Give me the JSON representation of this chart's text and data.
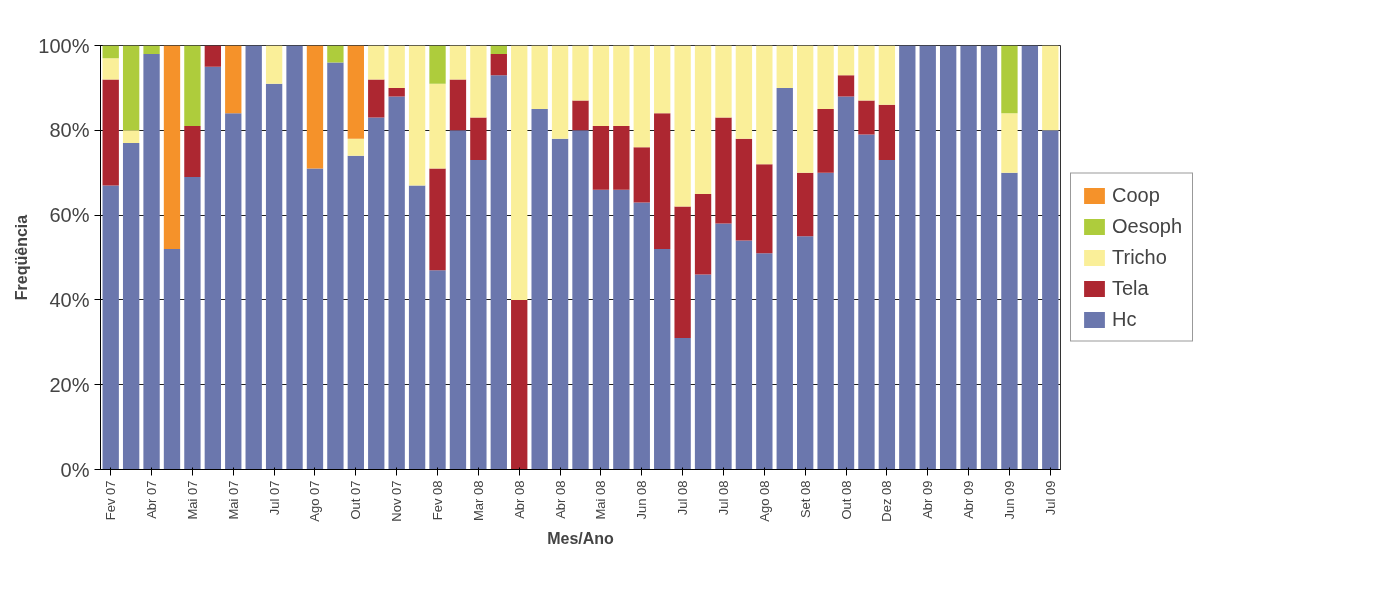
{
  "chart_data": {
    "type": "bar",
    "stacked": true,
    "xlabel": "Mes/Ano",
    "ylabel": "Freqüência",
    "categories": [
      "Fev 07",
      null,
      "Abr 07",
      null,
      "Mai 07",
      null,
      "Mai 07",
      null,
      "Jul 07",
      null,
      "Ago 07",
      null,
      "Out 07",
      null,
      "Nov 07",
      null,
      "Fev 08",
      null,
      "Mar 08",
      null,
      "Abr 08",
      null,
      "Abr 08",
      null,
      "Mai 08",
      null,
      "Jun 08",
      null,
      "Jul 08",
      null,
      "Jul 08",
      null,
      "Ago 08",
      null,
      "Set 08",
      null,
      "Out 08",
      null,
      "Dez 08",
      null,
      "Abr 09",
      null,
      "Abr 09",
      null,
      "Jun 09",
      null,
      "Jul 09"
    ],
    "series": [
      {
        "name": "Hc",
        "color": "#6b77ad",
        "values": [
          67,
          77,
          98,
          52,
          69,
          95,
          84,
          100,
          91,
          100,
          71,
          96,
          74,
          83,
          88,
          67,
          47,
          80,
          73,
          93,
          0,
          85,
          78,
          80,
          66,
          66,
          63,
          52,
          31,
          46,
          58,
          54,
          51,
          90,
          55,
          70,
          88,
          79,
          73,
          100,
          100,
          100,
          100,
          100,
          70,
          100,
          80
        ]
      },
      {
        "name": "Tela",
        "color": "#ad2731",
        "values": [
          25,
          0,
          0,
          0,
          12,
          5,
          0,
          0,
          0,
          0,
          0,
          0,
          0,
          9,
          2,
          0,
          24,
          12,
          10,
          5,
          40,
          0,
          0,
          7,
          15,
          15,
          13,
          32,
          31,
          19,
          25,
          24,
          21,
          0,
          15,
          15,
          5,
          8,
          13,
          0,
          0,
          0,
          0,
          0,
          0,
          0,
          0
        ]
      },
      {
        "name": "Tricho",
        "color": "#faef99",
        "values": [
          5,
          3,
          0,
          0,
          0,
          0,
          0,
          0,
          9,
          0,
          0,
          0,
          4,
          8,
          10,
          33,
          20,
          8,
          17,
          0,
          60,
          15,
          22,
          13,
          19,
          19,
          24,
          16,
          38,
          35,
          17,
          22,
          28,
          10,
          30,
          15,
          7,
          13,
          14,
          0,
          0,
          0,
          0,
          0,
          14,
          0,
          20
        ]
      },
      {
        "name": "Oesoph",
        "color": "#aecc3c",
        "values": [
          3,
          20,
          2,
          0,
          19,
          0,
          0,
          0,
          0,
          0,
          0,
          4,
          0,
          0,
          0,
          0,
          9,
          0,
          0,
          2,
          0,
          0,
          0,
          0,
          0,
          0,
          0,
          0,
          0,
          0,
          0,
          0,
          0,
          0,
          0,
          0,
          0,
          0,
          0,
          0,
          0,
          0,
          0,
          0,
          16,
          0,
          0
        ]
      },
      {
        "name": "Coop",
        "color": "#f5922a",
        "values": [
          0,
          0,
          0,
          48,
          0,
          0,
          16,
          0,
          0,
          0,
          29,
          0,
          22,
          0,
          0,
          0,
          0,
          0,
          0,
          0,
          0,
          0,
          0,
          0,
          0,
          0,
          0,
          0,
          0,
          0,
          0,
          0,
          0,
          0,
          0,
          0,
          0,
          0,
          0,
          0,
          0,
          0,
          0,
          0,
          0,
          0,
          0
        ]
      }
    ],
    "ylim": [
      0,
      100
    ],
    "yticks": [
      {
        "value": 0,
        "label": "0%"
      },
      {
        "value": 20,
        "label": "20%"
      },
      {
        "value": 40,
        "label": "40%"
      },
      {
        "value": 60,
        "label": "60%"
      },
      {
        "value": 80,
        "label": "80%"
      },
      {
        "value": 100,
        "label": "100%"
      }
    ],
    "grid": "y",
    "legend": "right"
  }
}
